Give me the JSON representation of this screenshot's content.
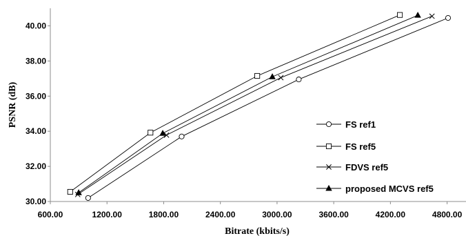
{
  "chart_data": {
    "type": "line",
    "title": "",
    "xlabel": "Bitrate (kbits/s)",
    "ylabel": "PSNR (dB)",
    "xlim": [
      600,
      5000
    ],
    "ylim": [
      30,
      41
    ],
    "x_ticks": [
      "600.00",
      "1200.00",
      "1800.00",
      "2400.00",
      "3000.00",
      "3600.00",
      "4200.00",
      "4800.00"
    ],
    "y_ticks": [
      "30.00",
      "32.00",
      "34.00",
      "36.00",
      "38.00",
      "40.00"
    ],
    "grid": false,
    "legend_position": "right",
    "series": [
      {
        "name": "FS ref1",
        "marker": "circle",
        "points": [
          [
            1000,
            30.2
          ],
          [
            1990,
            33.7
          ],
          [
            3230,
            36.95
          ],
          [
            4810,
            40.45
          ]
        ]
      },
      {
        "name": "FS ref5",
        "marker": "square",
        "points": [
          [
            810,
            30.55
          ],
          [
            1660,
            33.92
          ],
          [
            2790,
            37.15
          ],
          [
            4300,
            40.62
          ]
        ]
      },
      {
        "name": "FDVS ref5",
        "marker": "x",
        "points": [
          [
            890,
            30.4
          ],
          [
            1830,
            33.78
          ],
          [
            3040,
            37.05
          ],
          [
            4640,
            40.55
          ]
        ]
      },
      {
        "name": "proposed MCVS ref5",
        "marker": "triangle",
        "points": [
          [
            900,
            30.5
          ],
          [
            1790,
            33.88
          ],
          [
            2950,
            37.1
          ],
          [
            4490,
            40.6
          ]
        ]
      }
    ]
  }
}
